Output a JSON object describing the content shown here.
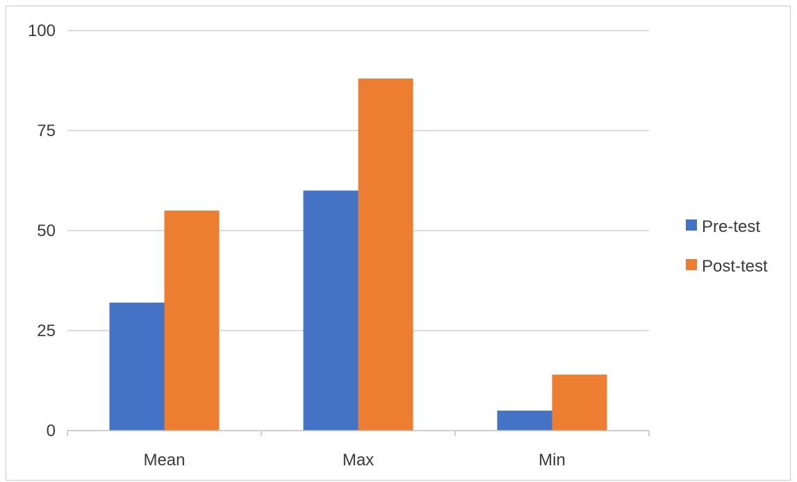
{
  "chart_data": {
    "type": "bar",
    "categories": [
      "Mean",
      "Max",
      "Min"
    ],
    "series": [
      {
        "name": "Pre-test",
        "values": [
          32,
          60,
          5
        ],
        "color": "#4472c4"
      },
      {
        "name": "Post-test",
        "values": [
          55,
          88,
          14
        ],
        "color": "#ed7d31"
      }
    ],
    "yticks": [
      "0",
      "25",
      "50",
      "75",
      "100"
    ],
    "ylim": [
      0,
      100
    ],
    "grid": true,
    "legend_position": "right"
  }
}
